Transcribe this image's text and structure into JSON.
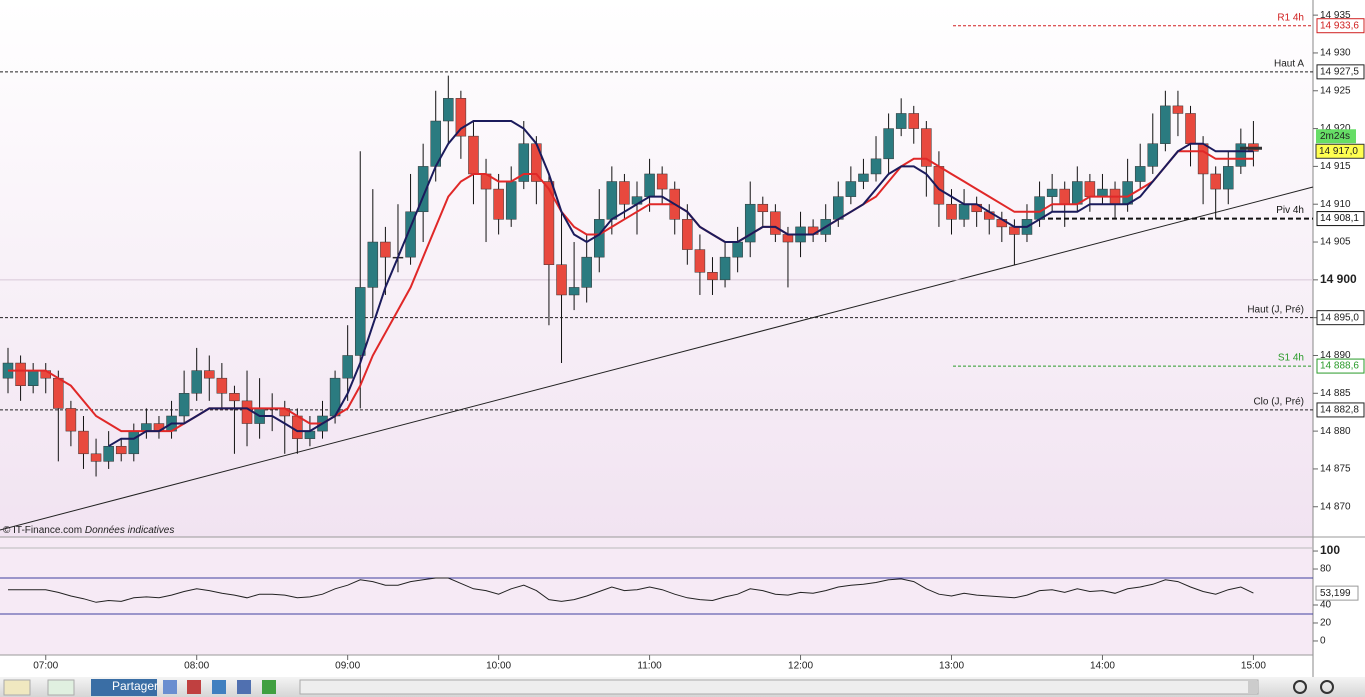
{
  "chart_data": {
    "type": "candlestick",
    "categories": [
      null,
      null,
      null,
      "07:00",
      null,
      null,
      null,
      null,
      null,
      null,
      null,
      null,
      null,
      null,
      null,
      "08:00",
      null,
      null,
      null,
      null,
      null,
      null,
      null,
      null,
      null,
      null,
      null,
      "09:00",
      null,
      null,
      null,
      null,
      null,
      null,
      null,
      null,
      null,
      null,
      null,
      "10:00",
      null,
      null,
      null,
      null,
      null,
      null,
      null,
      null,
      null,
      null,
      null,
      "11:00",
      null,
      null,
      null,
      null,
      null,
      null,
      null,
      null,
      null,
      null,
      null,
      "12:00",
      null,
      null,
      null,
      null,
      null,
      null,
      null,
      null,
      null,
      null,
      null,
      "13:00",
      null,
      null,
      null,
      null,
      null,
      null,
      null,
      null,
      null,
      null,
      null,
      "14:00",
      null,
      null,
      null,
      null,
      null,
      null,
      null,
      null,
      null,
      null,
      null,
      "15:00"
    ],
    "open": [
      14887,
      14889,
      14886,
      14888,
      14887,
      14883,
      14880,
      14877,
      14876,
      14878,
      14877,
      14880,
      14881,
      14880,
      14882,
      14885,
      14888,
      14887,
      14885,
      14884,
      14881,
      14883,
      14883,
      14882,
      14879,
      14880,
      14882,
      14887,
      14890,
      14899,
      14905,
      14903,
      14903,
      14909,
      14915,
      14921,
      14924,
      14919,
      14914,
      14912,
      14908,
      14913,
      14918,
      14913,
      14902,
      14898,
      14899,
      14903,
      14908,
      14913,
      14910,
      14911,
      14914,
      14912,
      14908,
      14904,
      14901,
      14900,
      14903,
      14905,
      14910,
      14909,
      14906,
      14905,
      14907,
      14906,
      14908,
      14911,
      14913,
      14914,
      14916,
      14920,
      14922,
      14920,
      14915,
      14910,
      14908,
      14910,
      14909,
      14908,
      14907,
      14906,
      14908,
      14911,
      14912,
      14910,
      14913,
      14911,
      14912,
      14910,
      14913,
      14915,
      14918,
      14923,
      14922,
      14918,
      14914,
      14912,
      14915,
      14918
    ],
    "high": [
      14891,
      14890,
      14889,
      14889,
      14888,
      14884,
      14882,
      14879,
      14880,
      14879,
      14881,
      14883,
      14882,
      14884,
      14888,
      14891,
      14890,
      14889,
      14886,
      14888,
      14887,
      14885,
      14884,
      14883,
      14882,
      14884,
      14888,
      14894,
      14917,
      14912,
      14907,
      14910,
      14914,
      14918,
      14925,
      14927,
      14925,
      14921,
      14916,
      14914,
      14915,
      14921,
      14919,
      14914,
      14909,
      14905,
      14906,
      14912,
      14915,
      14914,
      14913,
      14916,
      14915,
      14913,
      14910,
      14906,
      14903,
      14905,
      14907,
      14913,
      14911,
      14910,
      14907,
      14909,
      14908,
      14910,
      14913,
      14915,
      14916,
      14919,
      14922,
      14924,
      14923,
      14921,
      14917,
      14912,
      14912,
      14911,
      14910,
      14909,
      14908,
      14910,
      14913,
      14914,
      14913,
      14915,
      14914,
      14914,
      14913,
      14916,
      14918,
      14922,
      14925,
      14925,
      14923,
      14919,
      14915,
      14917,
      14920,
      14921
    ],
    "low": [
      14885,
      14884,
      14885,
      14885,
      14876,
      14878,
      14875,
      14874,
      14875,
      14876,
      14876,
      14879,
      14879,
      14879,
      14881,
      14884,
      14884,
      14883,
      14877,
      14878,
      14879,
      14880,
      14877,
      14877,
      14878,
      14879,
      14881,
      14884,
      14883,
      14895,
      14898,
      14901,
      14902,
      14905,
      14913,
      14918,
      14916,
      14910,
      14905,
      14906,
      14907,
      14912,
      14910,
      14894,
      14889,
      14896,
      14897,
      14901,
      14906,
      14908,
      14906,
      14909,
      14910,
      14906,
      14902,
      14898,
      14898,
      14899,
      14901,
      14903,
      14907,
      14905,
      14899,
      14903,
      14905,
      14905,
      14907,
      14910,
      14912,
      14913,
      14914,
      14919,
      14918,
      14911,
      14907,
      14906,
      14907,
      14907,
      14906,
      14905,
      14902,
      14905,
      14907,
      14909,
      14907,
      14909,
      14909,
      14910,
      14908,
      14909,
      14912,
      14914,
      14917,
      14919,
      14915,
      14910,
      14908,
      14910,
      14914,
      14915
    ],
    "close": [
      14889,
      14886,
      14888,
      14887,
      14883,
      14880,
      14877,
      14876,
      14878,
      14877,
      14880,
      14881,
      14880,
      14882,
      14885,
      14888,
      14887,
      14885,
      14884,
      14881,
      14883,
      14883,
      14882,
      14879,
      14880,
      14882,
      14887,
      14890,
      14899,
      14905,
      14903,
      14903,
      14909,
      14915,
      14921,
      14924,
      14919,
      14914,
      14912,
      14908,
      14913,
      14918,
      14913,
      14902,
      14898,
      14899,
      14903,
      14908,
      14913,
      14910,
      14911,
      14914,
      14912,
      14908,
      14904,
      14901,
      14900,
      14903,
      14905,
      14910,
      14909,
      14906,
      14905,
      14907,
      14906,
      14908,
      14911,
      14913,
      14914,
      14916,
      14920,
      14922,
      14920,
      14915,
      14910,
      14908,
      14910,
      14909,
      14908,
      14907,
      14906,
      14908,
      14911,
      14912,
      14910,
      14913,
      14911,
      14912,
      14910,
      14913,
      14915,
      14918,
      14923,
      14922,
      14918,
      14914,
      14912,
      14915,
      14918,
      14917
    ],
    "up_color": "#2b7b80",
    "down_color": "#e8493e",
    "moving_averages": [
      {
        "color": "#e02828",
        "values": [
          14888,
          14888,
          14888,
          14888,
          14887,
          14886,
          14884,
          14882,
          14881,
          14880,
          14880,
          14880,
          14880,
          14880,
          14881,
          14882,
          14883,
          14883,
          14883,
          14883,
          14883,
          14883,
          14883,
          14882,
          14881,
          14881,
          14882,
          14883,
          14886,
          14890,
          14893,
          14896,
          14899,
          14903,
          14907,
          14911,
          14913,
          14914,
          14914,
          14913,
          14913,
          14914,
          14914,
          14912,
          14909,
          14907,
          14906,
          14906,
          14907,
          14908,
          14909,
          14910,
          14910,
          14910,
          14909,
          14907,
          14906,
          14905,
          14905,
          14906,
          14907,
          14907,
          14906,
          14906,
          14906,
          14907,
          14908,
          14909,
          14910,
          14911,
          14913,
          14915,
          14916,
          14916,
          14915,
          14914,
          14913,
          14912,
          14911,
          14910,
          14909,
          14909,
          14909,
          14910,
          14910,
          14910,
          14911,
          14911,
          14911,
          14911,
          14912,
          14913,
          14915,
          14917,
          14917,
          14917,
          14916,
          14916,
          14916,
          14916
        ]
      },
      {
        "color": "#1b1b5c",
        "values": [
          null,
          null,
          null,
          null,
          null,
          null,
          null,
          null,
          14878,
          14879,
          14879,
          14880,
          14880,
          14881,
          14881,
          14882,
          14883,
          14883,
          14883,
          14883,
          14882,
          14882,
          14881,
          14880,
          14880,
          14881,
          14882,
          14885,
          14889,
          14894,
          14899,
          14903,
          14907,
          14911,
          14915,
          14918,
          14920,
          14921,
          14921,
          14921,
          14921,
          14920,
          14918,
          14914,
          14909,
          14906,
          14905,
          14906,
          14908,
          14909,
          14910,
          14911,
          14911,
          14910,
          14909,
          14907,
          14906,
          14905,
          14905,
          14906,
          14907,
          14907,
          14906,
          14906,
          14906,
          14907,
          14908,
          14909,
          14910,
          14912,
          14914,
          14915,
          14915,
          14914,
          14912,
          14911,
          14910,
          14910,
          14909,
          14908,
          14907,
          14907,
          14908,
          14909,
          14909,
          14909,
          14910,
          14910,
          14910,
          14910,
          14911,
          14913,
          14915,
          14917,
          14918,
          14918,
          14917,
          14917,
          14917,
          14917
        ]
      }
    ],
    "ylim": [
      14866,
      14937
    ],
    "yticks": [
      {
        "value": 14935,
        "label": "14 935"
      },
      {
        "value": 14930,
        "label": "14 930"
      },
      {
        "value": 14925,
        "label": "14 925"
      },
      {
        "value": 14920,
        "label": "14 920"
      },
      {
        "value": 14915,
        "label": "14 915"
      },
      {
        "value": 14910,
        "label": "14 910"
      },
      {
        "value": 14905,
        "label": "14 905"
      },
      {
        "value": 14900,
        "label": "14 900"
      },
      {
        "value": 14895,
        "label": "14 895"
      },
      {
        "value": 14890,
        "label": "14 890"
      },
      {
        "value": 14885,
        "label": "14 885"
      },
      {
        "value": 14880,
        "label": "14 880"
      },
      {
        "value": 14875,
        "label": "14 875"
      },
      {
        "value": 14870,
        "label": "14 870"
      }
    ],
    "levels": [
      {
        "label": "R1 4h",
        "value": 14933.6,
        "value_label": "14 933,6",
        "color": "#d02020"
      },
      {
        "label": "Haut A",
        "value": 14927.5,
        "value_label": "14 927,5",
        "color": "#222222"
      },
      {
        "label": "Piv 4h",
        "value": 14908.1,
        "value_label": "14 908,1",
        "color": "#111111"
      },
      {
        "label": "Haut (J, Pré)",
        "value": 14895.0,
        "value_label": "14 895,0",
        "color": "#222222"
      },
      {
        "label": "S1 4h",
        "value": 14888.6,
        "value_label": "14 888,6",
        "color": "#2a9a2a"
      },
      {
        "label": "Clo (J, Pré)",
        "value": 14882.8,
        "value_label": "14 882,8",
        "color": "#222222"
      }
    ],
    "last_price": {
      "value": 14917.0,
      "label": "14 917,0"
    },
    "timer": "2m24s",
    "rsi": {
      "color": "#222222",
      "values": [
        57,
        57,
        57,
        57,
        54,
        50,
        47,
        43,
        45,
        44,
        48,
        49,
        48,
        51,
        55,
        58,
        56,
        53,
        51,
        48,
        52,
        52,
        51,
        48,
        49,
        52,
        58,
        62,
        68,
        66,
        62,
        62,
        66,
        68,
        70,
        70,
        64,
        58,
        56,
        52,
        58,
        62,
        56,
        46,
        44,
        46,
        50,
        55,
        60,
        56,
        57,
        60,
        57,
        52,
        48,
        46,
        45,
        49,
        52,
        58,
        56,
        52,
        51,
        54,
        53,
        56,
        60,
        62,
        63,
        65,
        68,
        69,
        66,
        58,
        52,
        50,
        53,
        51,
        50,
        49,
        48,
        51,
        56,
        57,
        54,
        58,
        55,
        56,
        53,
        58,
        60,
        63,
        68,
        66,
        60,
        55,
        52,
        57,
        60,
        53.199
      ],
      "last_label": "53,199",
      "ylim": [
        -15.6,
        115.6
      ],
      "yticks": [
        100,
        80,
        40,
        20,
        0
      ],
      "levels": [
        70,
        30
      ]
    }
  },
  "footer": {
    "copyright": "© IT-Finance.com",
    "note": "Données indicatives"
  },
  "toolbar": {
    "share": "Partager"
  }
}
